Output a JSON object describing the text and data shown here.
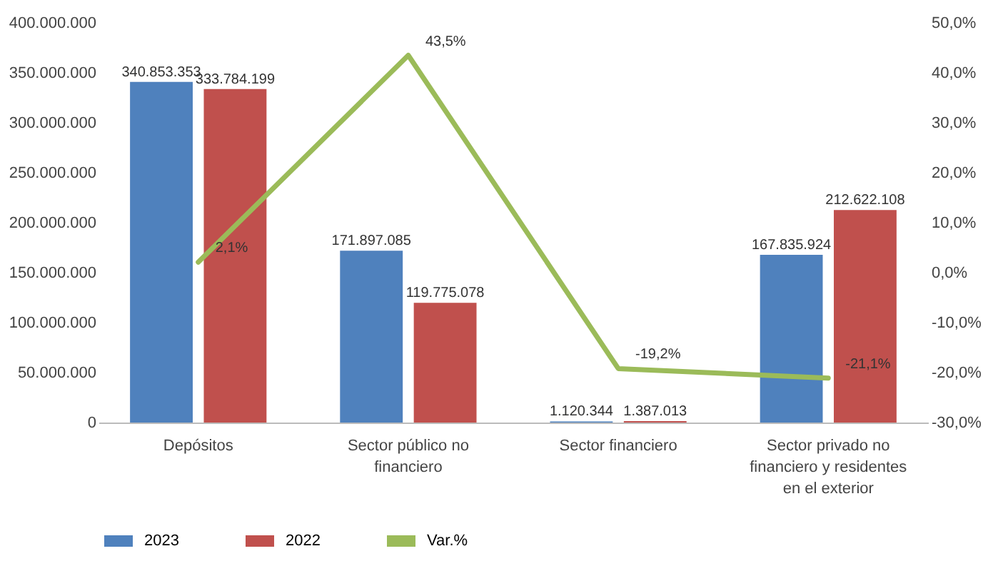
{
  "chart_data": {
    "type": "bar",
    "categories": [
      "Depósitos",
      "Sector público no financiero",
      "Sector financiero",
      "Sector privado no financiero y residentes en el exterior"
    ],
    "series": [
      {
        "name": "2023",
        "color": "#4f81bd",
        "values": [
          340853353,
          171897085,
          1120344,
          167835924
        ],
        "value_labels": [
          "340.853.353",
          "171.897.085",
          "1.120.344",
          "167.835.924"
        ]
      },
      {
        "name": "2022",
        "color": "#c0504d",
        "values": [
          333784199,
          119775078,
          1387013,
          212622108
        ],
        "value_labels": [
          "333.784.199",
          "119.775.078",
          "1.387.013",
          "212.622.108"
        ]
      },
      {
        "name": "Var.%",
        "type": "line",
        "axis": "y2",
        "color": "#9bbb59",
        "values": [
          2.1,
          43.5,
          -19.2,
          -21.1
        ],
        "value_labels": [
          "2,1%",
          "43,5%",
          "-19,2%",
          "-21,1%"
        ]
      }
    ],
    "ylim": [
      0,
      400000000
    ],
    "yticks": [
      {
        "value": 0,
        "label": "0"
      },
      {
        "value": 50000000,
        "label": "50.000.000"
      },
      {
        "value": 100000000,
        "label": "100.000.000"
      },
      {
        "value": 150000000,
        "label": "150.000.000"
      },
      {
        "value": 200000000,
        "label": "200.000.000"
      },
      {
        "value": 250000000,
        "label": "250.000.000"
      },
      {
        "value": 300000000,
        "label": "300.000.000"
      },
      {
        "value": 350000000,
        "label": "350.000.000"
      },
      {
        "value": 400000000,
        "label": "400.000.000"
      }
    ],
    "y2lim": [
      -30,
      50
    ],
    "y2ticks": [
      {
        "value": -30,
        "label": "-30,0%"
      },
      {
        "value": -20,
        "label": "-20,0%"
      },
      {
        "value": -10,
        "label": "-10,0%"
      },
      {
        "value": 0,
        "label": "0,0%"
      },
      {
        "value": 10,
        "label": "10,0%"
      },
      {
        "value": 20,
        "label": "20,0%"
      },
      {
        "value": 30,
        "label": "30,0%"
      },
      {
        "value": 40,
        "label": "40,0%"
      },
      {
        "value": 50,
        "label": "50,0%"
      }
    ],
    "legend": "bottom",
    "grid": false
  }
}
